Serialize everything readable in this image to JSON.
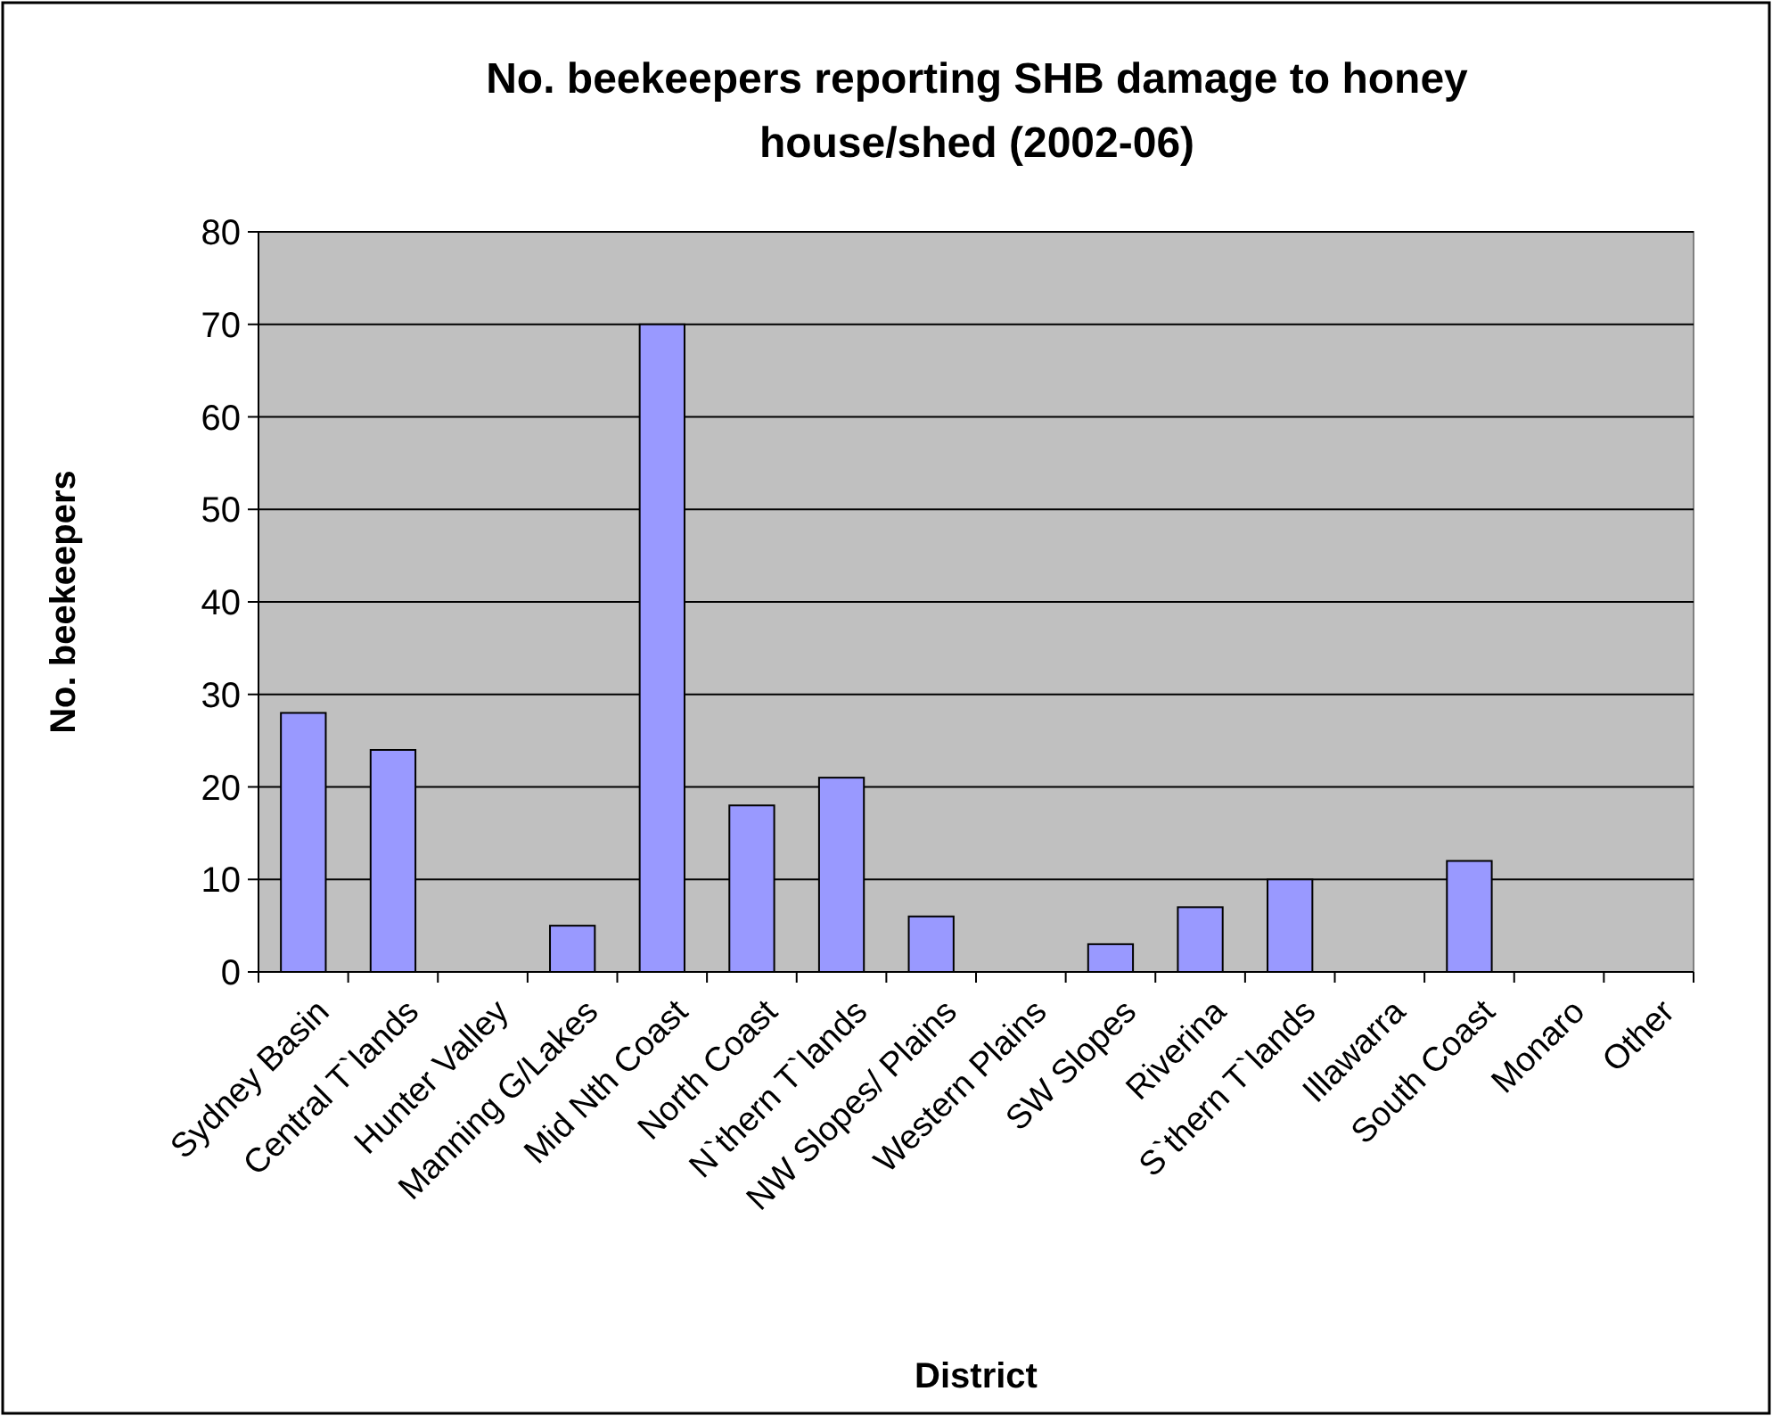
{
  "chart_data": {
    "type": "bar",
    "title": "No. beekeepers reporting SHB damage to honey house/shed (2002-06)",
    "xlabel": "District",
    "ylabel": "No. beekeepers",
    "categories": [
      "Sydney Basin",
      "Central T`lands",
      "Hunter Valley",
      "Manning G/Lakes",
      "Mid Nth Coast",
      "North Coast",
      "N`thern T`lands",
      "NW Slopes/ Plains",
      "Western Plains",
      "SW Slopes",
      "Riverina",
      "S`thern T`lands",
      "Illawarra",
      "South Coast",
      "Monaro",
      "Other"
    ],
    "values": [
      28,
      24,
      0,
      5,
      70,
      18,
      21,
      6,
      0,
      3,
      7,
      10,
      0,
      12,
      0,
      0
    ],
    "color": "#9999ff",
    "ylim": [
      0,
      80
    ],
    "yticks": [
      0,
      10,
      20,
      30,
      40,
      50,
      60,
      70,
      80
    ],
    "grid": "y"
  }
}
